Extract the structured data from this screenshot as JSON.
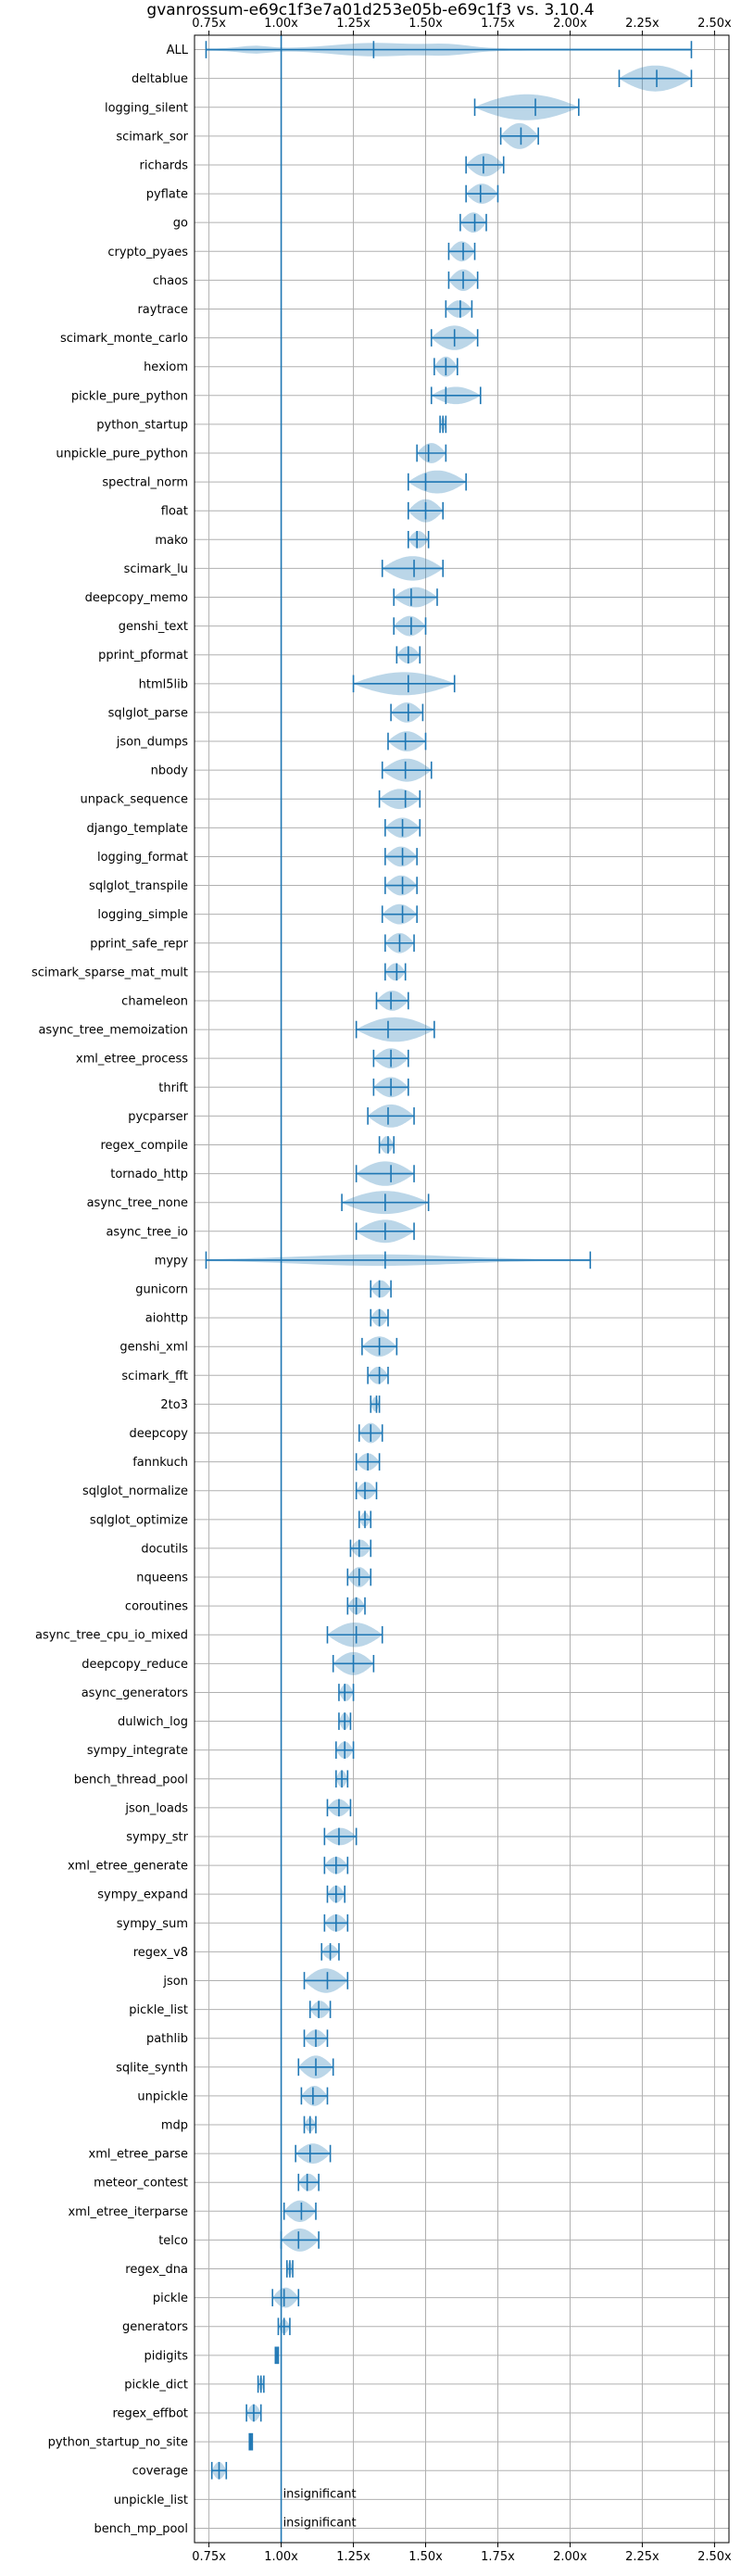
{
  "chart_data": {
    "type": "violin",
    "title": "gvanrossum-e69c1f3e7a01d253e05b-e69c1f3 vs. 3.10.4",
    "xlim": [
      0.7,
      2.55
    ],
    "xticks": [
      0.75,
      1.0,
      1.25,
      1.5,
      1.75,
      2.0,
      2.25,
      2.5
    ],
    "xtick_labels": [
      "0.75x",
      "1.00x",
      "1.25x",
      "1.50x",
      "1.75x",
      "2.00x",
      "2.25x",
      "2.50x"
    ],
    "ticks_top_and_bottom": true,
    "grid": true,
    "reference_line": 1.0,
    "series": [
      {
        "name": "ALL",
        "min": 0.74,
        "max": 2.42,
        "median": 1.32,
        "width": 0.55,
        "shape": "all"
      },
      {
        "name": "deltablue",
        "min": 2.17,
        "max": 2.42,
        "median": 2.3,
        "width": 0.9
      },
      {
        "name": "logging_silent",
        "min": 1.67,
        "max": 2.03,
        "median": 1.88,
        "width": 0.9
      },
      {
        "name": "scimark_sor",
        "min": 1.76,
        "max": 1.89,
        "median": 1.83,
        "width": 0.9
      },
      {
        "name": "richards",
        "min": 1.64,
        "max": 1.77,
        "median": 1.7,
        "width": 0.8
      },
      {
        "name": "pyflate",
        "min": 1.64,
        "max": 1.75,
        "median": 1.69,
        "width": 0.7
      },
      {
        "name": "go",
        "min": 1.62,
        "max": 1.71,
        "median": 1.67,
        "width": 0.7
      },
      {
        "name": "crypto_pyaes",
        "min": 1.58,
        "max": 1.67,
        "median": 1.63,
        "width": 0.7
      },
      {
        "name": "chaos",
        "min": 1.58,
        "max": 1.68,
        "median": 1.63,
        "width": 0.75
      },
      {
        "name": "raytrace",
        "min": 1.57,
        "max": 1.66,
        "median": 1.62,
        "width": 0.6
      },
      {
        "name": "scimark_monte_carlo",
        "min": 1.52,
        "max": 1.68,
        "median": 1.6,
        "width": 0.85
      },
      {
        "name": "hexiom",
        "min": 1.53,
        "max": 1.61,
        "median": 1.57,
        "width": 0.7
      },
      {
        "name": "pickle_pure_python",
        "min": 1.52,
        "max": 1.69,
        "median": 1.57,
        "width": 0.6
      },
      {
        "name": "python_startup",
        "min": 1.55,
        "max": 1.57,
        "median": 1.56,
        "width": 0.5
      },
      {
        "name": "unpickle_pure_python",
        "min": 1.47,
        "max": 1.57,
        "median": 1.51,
        "width": 0.7
      },
      {
        "name": "spectral_norm",
        "min": 1.44,
        "max": 1.64,
        "median": 1.5,
        "width": 0.8
      },
      {
        "name": "float",
        "min": 1.44,
        "max": 1.56,
        "median": 1.5,
        "width": 0.8
      },
      {
        "name": "mako",
        "min": 1.44,
        "max": 1.51,
        "median": 1.47,
        "width": 0.6
      },
      {
        "name": "scimark_lu",
        "min": 1.35,
        "max": 1.56,
        "median": 1.46,
        "width": 0.85
      },
      {
        "name": "deepcopy_memo",
        "min": 1.39,
        "max": 1.54,
        "median": 1.45,
        "width": 0.7
      },
      {
        "name": "genshi_text",
        "min": 1.39,
        "max": 1.5,
        "median": 1.45,
        "width": 0.7
      },
      {
        "name": "pprint_pformat",
        "min": 1.4,
        "max": 1.48,
        "median": 1.44,
        "width": 0.6
      },
      {
        "name": "html5lib",
        "min": 1.25,
        "max": 1.6,
        "median": 1.44,
        "width": 0.8
      },
      {
        "name": "sqlglot_parse",
        "min": 1.38,
        "max": 1.49,
        "median": 1.44,
        "width": 0.7
      },
      {
        "name": "json_dumps",
        "min": 1.37,
        "max": 1.5,
        "median": 1.43,
        "width": 0.7
      },
      {
        "name": "nbody",
        "min": 1.35,
        "max": 1.52,
        "median": 1.43,
        "width": 0.8
      },
      {
        "name": "unpack_sequence",
        "min": 1.34,
        "max": 1.48,
        "median": 1.43,
        "width": 0.7
      },
      {
        "name": "django_template",
        "min": 1.36,
        "max": 1.48,
        "median": 1.42,
        "width": 0.7
      },
      {
        "name": "logging_format",
        "min": 1.36,
        "max": 1.47,
        "median": 1.42,
        "width": 0.7
      },
      {
        "name": "sqlglot_transpile",
        "min": 1.36,
        "max": 1.47,
        "median": 1.42,
        "width": 0.7
      },
      {
        "name": "logging_simple",
        "min": 1.35,
        "max": 1.47,
        "median": 1.42,
        "width": 0.7
      },
      {
        "name": "pprint_safe_repr",
        "min": 1.36,
        "max": 1.46,
        "median": 1.41,
        "width": 0.7
      },
      {
        "name": "scimark_sparse_mat_mult",
        "min": 1.36,
        "max": 1.43,
        "median": 1.4,
        "width": 0.6
      },
      {
        "name": "chameleon",
        "min": 1.33,
        "max": 1.44,
        "median": 1.38,
        "width": 0.7
      },
      {
        "name": "async_tree_memoization",
        "min": 1.26,
        "max": 1.53,
        "median": 1.37,
        "width": 0.85
      },
      {
        "name": "xml_etree_process",
        "min": 1.32,
        "max": 1.44,
        "median": 1.38,
        "width": 0.7
      },
      {
        "name": "thrift",
        "min": 1.32,
        "max": 1.44,
        "median": 1.38,
        "width": 0.7
      },
      {
        "name": "pycparser",
        "min": 1.3,
        "max": 1.46,
        "median": 1.37,
        "width": 0.8
      },
      {
        "name": "regex_compile",
        "min": 1.34,
        "max": 1.39,
        "median": 1.37,
        "width": 0.6
      },
      {
        "name": "tornado_http",
        "min": 1.26,
        "max": 1.46,
        "median": 1.38,
        "width": 0.85
      },
      {
        "name": "async_tree_none",
        "min": 1.21,
        "max": 1.51,
        "median": 1.36,
        "width": 0.8
      },
      {
        "name": "async_tree_io",
        "min": 1.26,
        "max": 1.46,
        "median": 1.36,
        "width": 0.8
      },
      {
        "name": "mypy",
        "min": 0.74,
        "max": 2.07,
        "median": 1.36,
        "width": 0.4,
        "shape": "wide"
      },
      {
        "name": "gunicorn",
        "min": 1.31,
        "max": 1.38,
        "median": 1.34,
        "width": 0.6
      },
      {
        "name": "aiohttp",
        "min": 1.31,
        "max": 1.37,
        "median": 1.34,
        "width": 0.6
      },
      {
        "name": "genshi_xml",
        "min": 1.28,
        "max": 1.4,
        "median": 1.34,
        "width": 0.7
      },
      {
        "name": "scimark_fft",
        "min": 1.3,
        "max": 1.37,
        "median": 1.34,
        "width": 0.6
      },
      {
        "name": "2to3",
        "min": 1.31,
        "max": 1.34,
        "median": 1.33,
        "width": 0.5
      },
      {
        "name": "deepcopy",
        "min": 1.27,
        "max": 1.35,
        "median": 1.31,
        "width": 0.7
      },
      {
        "name": "fannkuch",
        "min": 1.26,
        "max": 1.34,
        "median": 1.3,
        "width": 0.6
      },
      {
        "name": "sqlglot_normalize",
        "min": 1.26,
        "max": 1.33,
        "median": 1.29,
        "width": 0.6
      },
      {
        "name": "sqlglot_optimize",
        "min": 1.27,
        "max": 1.31,
        "median": 1.29,
        "width": 0.5
      },
      {
        "name": "docutils",
        "min": 1.24,
        "max": 1.31,
        "median": 1.27,
        "width": 0.6
      },
      {
        "name": "nqueens",
        "min": 1.23,
        "max": 1.31,
        "median": 1.27,
        "width": 0.7
      },
      {
        "name": "coroutines",
        "min": 1.23,
        "max": 1.29,
        "median": 1.26,
        "width": 0.6
      },
      {
        "name": "async_tree_cpu_io_mixed",
        "min": 1.16,
        "max": 1.35,
        "median": 1.26,
        "width": 0.85
      },
      {
        "name": "deepcopy_reduce",
        "min": 1.18,
        "max": 1.32,
        "median": 1.25,
        "width": 0.8
      },
      {
        "name": "async_generators",
        "min": 1.2,
        "max": 1.25,
        "median": 1.22,
        "width": 0.6
      },
      {
        "name": "dulwich_log",
        "min": 1.2,
        "max": 1.24,
        "median": 1.22,
        "width": 0.6
      },
      {
        "name": "sympy_integrate",
        "min": 1.19,
        "max": 1.25,
        "median": 1.22,
        "width": 0.6
      },
      {
        "name": "bench_thread_pool",
        "min": 1.19,
        "max": 1.23,
        "median": 1.21,
        "width": 0.6
      },
      {
        "name": "json_loads",
        "min": 1.16,
        "max": 1.24,
        "median": 1.2,
        "width": 0.6
      },
      {
        "name": "sympy_str",
        "min": 1.15,
        "max": 1.26,
        "median": 1.2,
        "width": 0.6
      },
      {
        "name": "xml_etree_generate",
        "min": 1.15,
        "max": 1.23,
        "median": 1.19,
        "width": 0.6
      },
      {
        "name": "sympy_expand",
        "min": 1.16,
        "max": 1.22,
        "median": 1.19,
        "width": 0.6
      },
      {
        "name": "sympy_sum",
        "min": 1.15,
        "max": 1.23,
        "median": 1.19,
        "width": 0.6
      },
      {
        "name": "regex_v8",
        "min": 1.14,
        "max": 1.2,
        "median": 1.17,
        "width": 0.5
      },
      {
        "name": "json",
        "min": 1.08,
        "max": 1.23,
        "median": 1.16,
        "width": 0.85
      },
      {
        "name": "pickle_list",
        "min": 1.1,
        "max": 1.17,
        "median": 1.13,
        "width": 0.6
      },
      {
        "name": "pathlib",
        "min": 1.08,
        "max": 1.16,
        "median": 1.12,
        "width": 0.6
      },
      {
        "name": "sqlite_synth",
        "min": 1.06,
        "max": 1.18,
        "median": 1.12,
        "width": 0.8
      },
      {
        "name": "unpickle",
        "min": 1.07,
        "max": 1.16,
        "median": 1.11,
        "width": 0.7
      },
      {
        "name": "mdp",
        "min": 1.08,
        "max": 1.12,
        "median": 1.1,
        "width": 0.5
      },
      {
        "name": "xml_etree_parse",
        "min": 1.05,
        "max": 1.17,
        "median": 1.1,
        "width": 0.7
      },
      {
        "name": "meteor_contest",
        "min": 1.06,
        "max": 1.13,
        "median": 1.09,
        "width": 0.6
      },
      {
        "name": "xml_etree_iterparse",
        "min": 1.01,
        "max": 1.12,
        "median": 1.07,
        "width": 0.75
      },
      {
        "name": "telco",
        "min": 1.0,
        "max": 1.13,
        "median": 1.06,
        "width": 0.8
      },
      {
        "name": "regex_dna",
        "min": 1.02,
        "max": 1.04,
        "median": 1.03,
        "width": 0.5
      },
      {
        "name": "pickle",
        "min": 0.97,
        "max": 1.06,
        "median": 1.01,
        "width": 0.7
      },
      {
        "name": "generators",
        "min": 0.99,
        "max": 1.03,
        "median": 1.01,
        "width": 0.5
      },
      {
        "name": "pidigits",
        "min": 0.98,
        "max": 0.99,
        "median": 0.985,
        "width": 0.4
      },
      {
        "name": "pickle_dict",
        "min": 0.92,
        "max": 0.94,
        "median": 0.93,
        "width": 0.5
      },
      {
        "name": "regex_effbot",
        "min": 0.88,
        "max": 0.93,
        "median": 0.905,
        "width": 0.6
      },
      {
        "name": "python_startup_no_site",
        "min": 0.89,
        "max": 0.9,
        "median": 0.895,
        "width": 0.35
      },
      {
        "name": "coverage",
        "min": 0.76,
        "max": 0.81,
        "median": 0.785,
        "width": 0.6
      },
      {
        "name": "unpickle_list",
        "insignificant": true
      },
      {
        "name": "bench_mp_pool",
        "insignificant": true
      }
    ],
    "annotation_text": "insignificant"
  }
}
